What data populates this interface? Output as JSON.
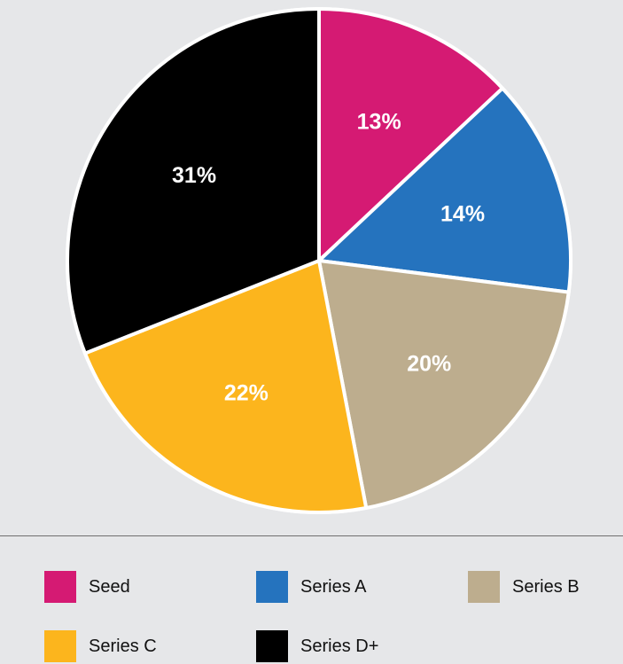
{
  "chart_data": {
    "type": "pie",
    "title": "",
    "slices": [
      {
        "name": "Seed",
        "value": 13,
        "label": "13%",
        "color": "#d51a73"
      },
      {
        "name": "Series A",
        "value": 14,
        "label": "14%",
        "color": "#2573be"
      },
      {
        "name": "Series B",
        "value": 20,
        "label": "20%",
        "color": "#bdad8e"
      },
      {
        "name": "Series C",
        "value": 22,
        "label": "22%",
        "color": "#fcb51d"
      },
      {
        "name": "Series D+",
        "value": 31,
        "label": "31%",
        "color": "#000000"
      }
    ],
    "start_angle": "12 o'clock",
    "direction": "clockwise",
    "legend_placement": "bottom"
  },
  "legend": {
    "items": [
      {
        "label": "Seed",
        "color": "#d51a73"
      },
      {
        "label": "Series A",
        "color": "#2573be"
      },
      {
        "label": "Series B",
        "color": "#bdad8e"
      },
      {
        "label": "Series C",
        "color": "#fcb51d"
      },
      {
        "label": "Series D+",
        "color": "#000000"
      }
    ]
  },
  "colors": {
    "background": "#e6e7e9",
    "slice_border": "#ffffff",
    "divider": "#6f6f6f"
  }
}
